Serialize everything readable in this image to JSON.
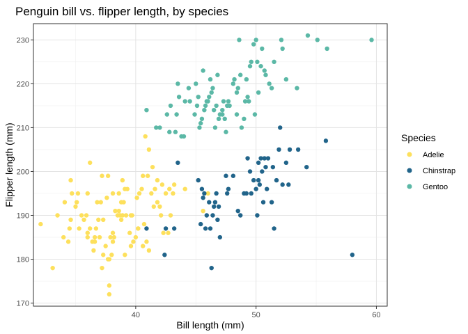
{
  "chart_data": {
    "type": "scatter",
    "title": "Penguin bill vs. flipper length, by species",
    "xlabel": "Bill length (mm)",
    "ylabel": "Flipper length (mm)",
    "xlim": [
      31.5,
      60.9
    ],
    "ylim": [
      169.3,
      233.7
    ],
    "x_ticks": [
      40,
      50,
      60
    ],
    "y_ticks": [
      170,
      180,
      190,
      200,
      210,
      220,
      230
    ],
    "grid": true,
    "legend": {
      "title": "Species",
      "position": "right"
    },
    "series": [
      {
        "name": "Adelie",
        "color": "#FDE05C",
        "points": [
          [
            32.1,
            188
          ],
          [
            33.1,
            178
          ],
          [
            33.5,
            190
          ],
          [
            34.0,
            185
          ],
          [
            34.1,
            193
          ],
          [
            34.4,
            184
          ],
          [
            34.5,
            187
          ],
          [
            34.6,
            189
          ],
          [
            34.6,
            198
          ],
          [
            34.7,
            195
          ],
          [
            35.0,
            192
          ],
          [
            35.1,
            193
          ],
          [
            35.2,
            195
          ],
          [
            35.3,
            187
          ],
          [
            35.5,
            190
          ],
          [
            35.7,
            189
          ],
          [
            35.9,
            190
          ],
          [
            36.0,
            186
          ],
          [
            36.0,
            195
          ],
          [
            36.2,
            187
          ],
          [
            36.2,
            202
          ],
          [
            36.4,
            184
          ],
          [
            36.5,
            182
          ],
          [
            36.6,
            185
          ],
          [
            36.7,
            187
          ],
          [
            36.8,
            193
          ],
          [
            36.9,
            189
          ],
          [
            37.0,
            185
          ],
          [
            37.2,
            178
          ],
          [
            37.3,
            181
          ],
          [
            37.5,
            183
          ],
          [
            37.6,
            194
          ],
          [
            37.7,
            180
          ],
          [
            37.8,
            174
          ],
          [
            37.8,
            172
          ],
          [
            37.9,
            185
          ],
          [
            38.0,
            181
          ],
          [
            38.1,
            184
          ],
          [
            38.2,
            185
          ],
          [
            38.3,
            191
          ],
          [
            38.5,
            190
          ],
          [
            38.6,
            195
          ],
          [
            38.7,
            190
          ],
          [
            38.8,
            193
          ],
          [
            38.9,
            190
          ],
          [
            39.0,
            193
          ],
          [
            39.1,
            181
          ],
          [
            39.2,
            190
          ],
          [
            39.3,
            196
          ],
          [
            39.5,
            186
          ],
          [
            39.6,
            190
          ],
          [
            39.7,
            190
          ],
          [
            39.8,
            184
          ],
          [
            40.0,
            185
          ],
          [
            40.1,
            194
          ],
          [
            40.2,
            187
          ],
          [
            40.3,
            195
          ],
          [
            40.5,
            196
          ],
          [
            40.6,
            183
          ],
          [
            40.7,
            188
          ],
          [
            40.8,
            208
          ],
          [
            40.9,
            184
          ],
          [
            41.0,
            199
          ],
          [
            41.1,
            182
          ],
          [
            41.3,
            195
          ],
          [
            41.5,
            192
          ],
          [
            41.6,
            196
          ],
          [
            41.8,
            198
          ],
          [
            42.0,
            192
          ],
          [
            42.2,
            197
          ],
          [
            42.3,
            186
          ],
          [
            42.5,
            195
          ],
          [
            42.7,
            186
          ],
          [
            42.8,
            196
          ],
          [
            42.9,
            190
          ],
          [
            43.1,
            195
          ],
          [
            43.2,
            197
          ],
          [
            44.1,
            196
          ],
          [
            45.6,
            191
          ],
          [
            46.0,
            195
          ],
          [
            36.0,
            185
          ],
          [
            36.6,
            184
          ],
          [
            37.1,
            193
          ],
          [
            37.3,
            189
          ],
          [
            37.8,
            180
          ],
          [
            38.1,
            186
          ],
          [
            38.6,
            191
          ],
          [
            38.9,
            198
          ],
          [
            39.1,
            196
          ],
          [
            39.6,
            183
          ],
          [
            40.2,
            187
          ],
          [
            40.6,
            199
          ],
          [
            41.1,
            205
          ],
          [
            41.4,
            201
          ],
          [
            41.8,
            193
          ],
          [
            42.1,
            190
          ],
          [
            37.2,
            199
          ],
          [
            37.7,
            199
          ],
          [
            38.1,
            195
          ],
          [
            38.8,
            189
          ]
        ]
      },
      {
        "name": "Chinstrap",
        "color": "#21648A",
        "points": [
          [
            40.9,
            187
          ],
          [
            42.4,
            181
          ],
          [
            42.5,
            187
          ],
          [
            43.2,
            187
          ],
          [
            43.5,
            202
          ],
          [
            45.2,
            198
          ],
          [
            45.4,
            188
          ],
          [
            45.5,
            196
          ],
          [
            45.6,
            194
          ],
          [
            45.7,
            195
          ],
          [
            45.9,
            190
          ],
          [
            46.1,
            193
          ],
          [
            46.2,
            187
          ],
          [
            46.4,
            190
          ],
          [
            46.5,
            192
          ],
          [
            46.6,
            193
          ],
          [
            46.7,
            195
          ],
          [
            46.8,
            189
          ],
          [
            46.9,
            192
          ],
          [
            47.0,
            185
          ],
          [
            47.5,
            199
          ],
          [
            47.6,
            195
          ],
          [
            47.7,
            196
          ],
          [
            48.1,
            199
          ],
          [
            48.5,
            191
          ],
          [
            49.0,
            195
          ],
          [
            49.2,
            195
          ],
          [
            49.3,
            203
          ],
          [
            49.5,
            200
          ],
          [
            49.6,
            195
          ],
          [
            49.8,
            198
          ],
          [
            50.0,
            196
          ],
          [
            50.1,
            190
          ],
          [
            50.2,
            198
          ],
          [
            50.3,
            197
          ],
          [
            50.4,
            203
          ],
          [
            50.5,
            200
          ],
          [
            50.6,
            193
          ],
          [
            50.7,
            203
          ],
          [
            50.8,
            201
          ],
          [
            50.9,
            196
          ],
          [
            51.0,
            203
          ],
          [
            51.3,
            193
          ],
          [
            51.4,
            201
          ],
          [
            51.5,
            187
          ],
          [
            51.7,
            198
          ],
          [
            51.9,
            205
          ],
          [
            52.0,
            210
          ],
          [
            52.2,
            197
          ],
          [
            52.5,
            202
          ],
          [
            52.7,
            197
          ],
          [
            52.8,
            205
          ],
          [
            53.5,
            205
          ],
          [
            54.2,
            201
          ],
          [
            55.8,
            207
          ],
          [
            58.0,
            181
          ],
          [
            46.3,
            178
          ],
          [
            45.8,
            187
          ],
          [
            50.2,
            202
          ],
          [
            48.7,
            190
          ]
        ]
      },
      {
        "name": "Gentoo",
        "color": "#5BB8A6",
        "points": [
          [
            40.9,
            214
          ],
          [
            41.7,
            210
          ],
          [
            42.0,
            210
          ],
          [
            42.6,
            213
          ],
          [
            42.8,
            209
          ],
          [
            42.9,
            215
          ],
          [
            43.3,
            209
          ],
          [
            43.4,
            213
          ],
          [
            43.5,
            220
          ],
          [
            43.6,
            217
          ],
          [
            43.8,
            208
          ],
          [
            44.0,
            208
          ],
          [
            44.4,
            219
          ],
          [
            44.5,
            216
          ],
          [
            44.9,
            213
          ],
          [
            45.0,
            220
          ],
          [
            45.1,
            215
          ],
          [
            45.2,
            217
          ],
          [
            45.3,
            210
          ],
          [
            45.4,
            211
          ],
          [
            45.5,
            212
          ],
          [
            45.6,
            223
          ],
          [
            45.7,
            214
          ],
          [
            45.8,
            215
          ],
          [
            46.0,
            216
          ],
          [
            46.1,
            217
          ],
          [
            46.2,
            221
          ],
          [
            46.3,
            218
          ],
          [
            46.4,
            219
          ],
          [
            46.5,
            214
          ],
          [
            46.6,
            210
          ],
          [
            46.7,
            215
          ],
          [
            46.8,
            222
          ],
          [
            46.9,
            212
          ],
          [
            47.0,
            213
          ],
          [
            47.2,
            214
          ],
          [
            47.3,
            216
          ],
          [
            47.4,
            212
          ],
          [
            47.5,
            209
          ],
          [
            47.6,
            215
          ],
          [
            47.7,
            216
          ],
          [
            47.8,
            215
          ],
          [
            48.1,
            220
          ],
          [
            48.2,
            221
          ],
          [
            48.4,
            213
          ],
          [
            48.5,
            219
          ],
          [
            48.6,
            230
          ],
          [
            48.7,
            222
          ],
          [
            48.8,
            210
          ],
          [
            49.0,
            212
          ],
          [
            49.1,
            216
          ],
          [
            49.2,
            221
          ],
          [
            49.3,
            217
          ],
          [
            49.4,
            216
          ],
          [
            49.5,
            224
          ],
          [
            49.6,
            225
          ],
          [
            49.8,
            229
          ],
          [
            49.9,
            213
          ],
          [
            50.0,
            230
          ],
          [
            50.1,
            225
          ],
          [
            50.2,
            218
          ],
          [
            50.4,
            224
          ],
          [
            50.5,
            228
          ],
          [
            50.7,
            223
          ],
          [
            50.8,
            222
          ],
          [
            51.1,
            220
          ],
          [
            51.3,
            219
          ],
          [
            51.5,
            225
          ],
          [
            52.1,
            230
          ],
          [
            52.2,
            228
          ],
          [
            52.5,
            221
          ],
          [
            53.4,
            219
          ],
          [
            54.3,
            231
          ],
          [
            55.1,
            230
          ],
          [
            55.9,
            228
          ],
          [
            59.6,
            230
          ],
          [
            44.1,
            216
          ],
          [
            45.9,
            216
          ],
          [
            47.2,
            213
          ],
          [
            48.4,
            218
          ]
        ]
      }
    ]
  }
}
